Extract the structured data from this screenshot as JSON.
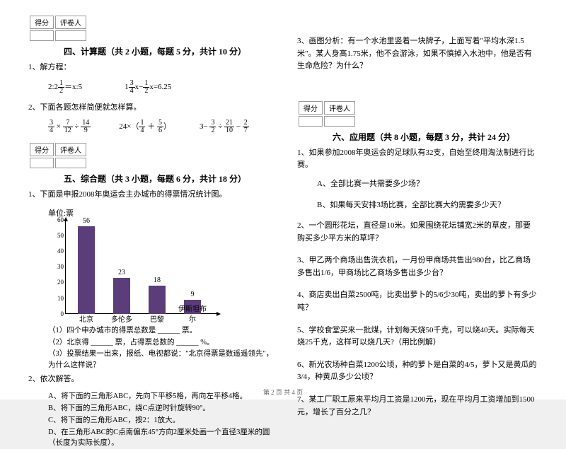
{
  "scoreHeader": {
    "c1": "得分",
    "c2": "评卷人"
  },
  "sections": {
    "s4": {
      "title": "四、计算题（共 2 小题，每题 5 分，共计 10 分）"
    },
    "s5": {
      "title": "五、综合题（共 3 小题，每题 6 分，共计 18 分）"
    },
    "s6": {
      "title": "六、应用题（共 8 小题，每题 3 分，共计 24 分）"
    }
  },
  "left": {
    "q1": "1、解方程：",
    "q1a": "2:2",
    "q1a_suffix": "＝x:5",
    "q1b_prefix": "1",
    "q1b_mid": "x−",
    "q1b_suffix": "x=6.25",
    "q2": "2、下面各题怎样简便就怎样算。",
    "q2a_op": " × ",
    "q2a_op2": " ÷ ",
    "q2b_pre": "24×（",
    "q2b_mid": " ＋ ",
    "q2b_suf": "）",
    "q2c_pre": "3− ",
    "q2c_mid": " ÷ ",
    "q2c_mid2": " − ",
    "q3": "1、下面是申报2008年奥运会主办城市的得票情况统计图。",
    "chart": {
      "title": "单位:票",
      "y_ticks": [
        "60",
        "50",
        "40",
        "30",
        "20",
        "10",
        "0"
      ],
      "bars": [
        {
          "label": "北京",
          "value": 56,
          "value_text": "56"
        },
        {
          "label": "多伦多",
          "value": 23,
          "value_text": "23"
        },
        {
          "label": "巴黎",
          "value": 18,
          "value_text": "18"
        },
        {
          "label": "伊斯坦布尔",
          "value": 9,
          "value_text": "9"
        }
      ],
      "bar_color": "#5b3d7a"
    },
    "q3_sub1": "（1）四个申办城市的得票总数是 ______ 票。",
    "q3_sub2": "（2）北京得 ______ 票，占得票总数的 ______ %。",
    "q3_sub3": "（3）投票结果一出来，报纸、电视都说：\"北京得票是数遥遥领先\"，为什么这样说？",
    "q4": "2、依次解答。",
    "q4a": "A、将下面的三角形ABC，先向下平移5格，再向左平移4格。",
    "q4b": "B、将下面的三角形ABC，绕C点逆时针旋转90°。",
    "q4c": "C、将下面的三角形ABC，按2：1放大。",
    "q4d": "D、在三角形ABC的C点南偏东45°方向2厘米处画一个直径3厘米的圆（长度为实际长度）。"
  },
  "right": {
    "q3": "3、画图分析：有一个水池里竖着一块牌子，上面写着\"平均水深1.5米\"。某人身高1.75米，他不会游泳，如果不慎掉入水池中，他是否有生命危险？为什么？",
    "q6_1": "1、如果参加2008年奥运会的足球队有32支，自始至终用淘汰制进行比赛。",
    "q6_1a": "A、全部比赛一共需要多少场？",
    "q6_1b": "B、如果每天安排3场比赛，全部比赛大约需要多少天？",
    "q6_2": "2、一个圆形花坛，直径是10米。如果围绕花坛铺宽2米的草皮，那要购买多少平方米的草坪？",
    "q6_3": "3、甲乙两个商场出售洗衣机，一月份甲商场共售出980台，比乙商场多售出1/6，甲商场比乙商场多售出多少台？",
    "q6_4": "4、商店卖出白菜2500吨，比卖出萝卜的5/6少30吨，卖出的萝卜有多少吨？",
    "q6_5": "5、学校食堂买来一批煤，计划每天烧50千克，可以烧40天。实际每天烧25千克，这样可以烧几天?（用比例解）",
    "q6_6": "6、新光农场种白菜1200公顷，种的萝卜是白菜的4/5，萝卜又是黄瓜的3/4，种黄瓜多少公顷？",
    "q6_7": "7、某工厂职工原来平均月工资是1200元，现在平均月工资增加到1500元，增长了百分之几？"
  },
  "fractions": {
    "half": {
      "n": "1",
      "d": "2"
    },
    "three_four": {
      "n": "3",
      "d": "4"
    },
    "seven_twelve": {
      "n": "7",
      "d": "12"
    },
    "fourteen_nine": {
      "n": "14",
      "d": "9"
    },
    "one_four": {
      "n": "1",
      "d": "4"
    },
    "five_six": {
      "n": "5",
      "d": "6"
    },
    "three_two": {
      "n": "3",
      "d": "2"
    },
    "twentyone_ten": {
      "n": "21",
      "d": "10"
    },
    "two_seven": {
      "n": "2",
      "d": "7"
    }
  },
  "footer": "第 2 页 共 4 页"
}
